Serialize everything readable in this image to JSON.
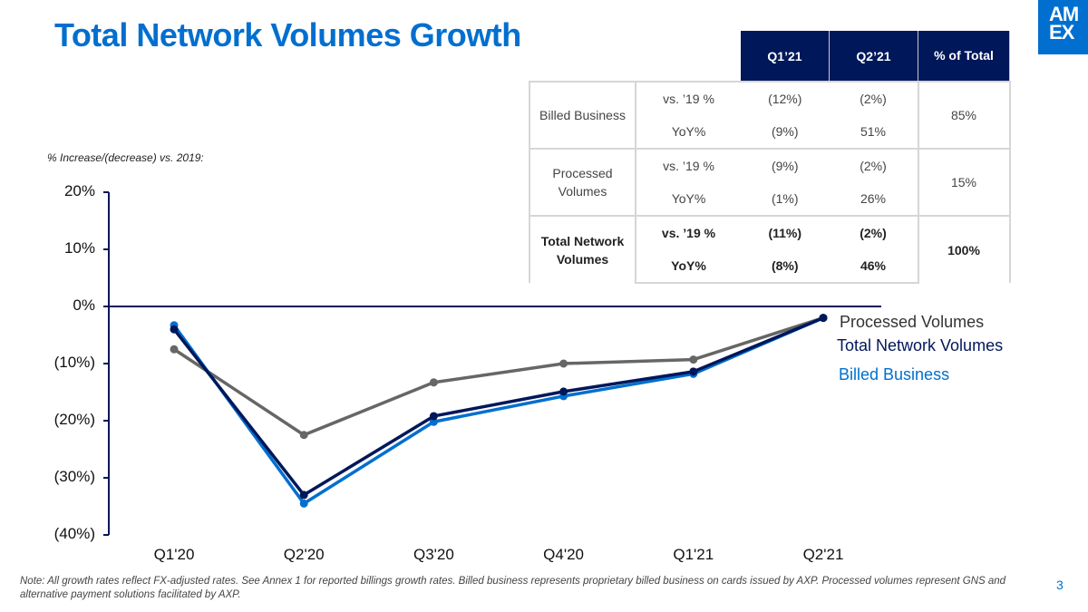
{
  "title": "Total Network Volumes Growth",
  "logo": {
    "line1": "AM",
    "line2": "EX"
  },
  "table": {
    "headers": [
      "Q1’21",
      "Q2’21",
      "% of Total"
    ],
    "groups": [
      {
        "label": "Billed Business",
        "bold": false,
        "share": "85%",
        "rows": [
          {
            "metric": "vs. ’19 %",
            "q1": "(12%)",
            "q2": "(2%)"
          },
          {
            "metric": "YoY%",
            "q1": "(9%)",
            "q2": "51%"
          }
        ]
      },
      {
        "label": "Processed Volumes",
        "bold": false,
        "share": "15%",
        "rows": [
          {
            "metric": "vs. ’19 %",
            "q1": "(9%)",
            "q2": "(2%)"
          },
          {
            "metric": "YoY%",
            "q1": "(1%)",
            "q2": "26%"
          }
        ]
      },
      {
        "label": "Total Network Volumes",
        "bold": true,
        "share": "100%",
        "rows": [
          {
            "metric": "vs. ’19 %",
            "q1": "(11%)",
            "q2": "(2%)"
          },
          {
            "metric": "YoY%",
            "q1": "(8%)",
            "q2": "46%"
          }
        ]
      }
    ]
  },
  "chart_data": {
    "type": "line",
    "subtitle": "% Increase/(decrease) vs. 2019:",
    "categories": [
      "Q1'20",
      "Q2'20",
      "Q3'20",
      "Q4'20",
      "Q1'21",
      "Q2'21"
    ],
    "ylim": [
      -40,
      20
    ],
    "yticks": [
      20,
      10,
      0,
      -10,
      -20,
      -30,
      -40
    ],
    "ytick_labels": [
      "20%",
      "10%",
      "0%",
      "(10%)",
      "(20%)",
      "(30%)",
      "(40%)"
    ],
    "series": [
      {
        "name": "Processed Volumes",
        "color": "#666666",
        "values": [
          -7.5,
          -22.5,
          -13.3,
          -10,
          -9.3,
          -2
        ]
      },
      {
        "name": "Billed Business",
        "color": "#006fcf",
        "values": [
          -3.3,
          -34.5,
          -20.2,
          -15.7,
          -11.8,
          -2
        ]
      },
      {
        "name": "Total Network Volumes",
        "color": "#00175a",
        "values": [
          -4,
          -33,
          -19.2,
          -14.9,
          -11.4,
          -2
        ]
      }
    ]
  },
  "note": "Note: All growth rates reflect FX-adjusted rates. See Annex 1 for reported billings growth rates. Billed business represents proprietary billed business on cards issued by AXP. Processed volumes represent GNS and alternative payment solutions facilitated by AXP.",
  "page_number": "3"
}
